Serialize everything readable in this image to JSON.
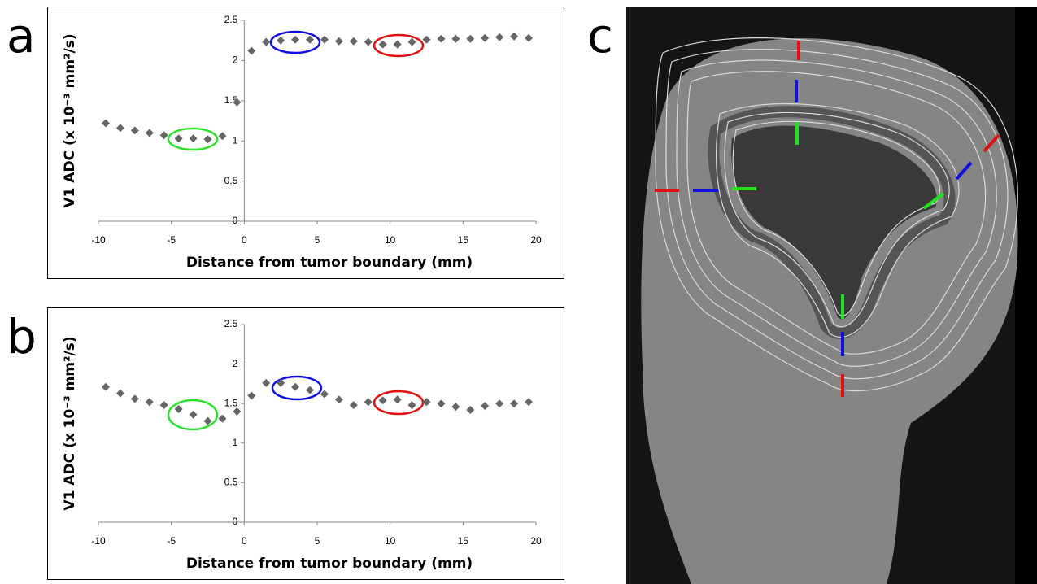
{
  "panel_labels": [
    "a",
    "b",
    "c"
  ],
  "chart_data": [
    {
      "type": "scatter",
      "xlabel": "Distance from tumor boundary (mm)",
      "ylabel": "V1 ADC (x 10⁻³ mm²/s)",
      "color": "#666666",
      "x": [
        -9.5,
        -8.5,
        -7.5,
        -6.5,
        -5.5,
        -4.5,
        -3.5,
        -2.5,
        -1.5,
        -0.5,
        0.5,
        1.5,
        2.5,
        3.5,
        4.5,
        5.5,
        6.5,
        7.5,
        8.5,
        9.5,
        10.5,
        11.5,
        12.5,
        13.5,
        14.5,
        15.5,
        16.5,
        17.5,
        18.5,
        19.5
      ],
      "values": [
        1.22,
        1.16,
        1.13,
        1.1,
        1.07,
        1.03,
        1.03,
        1.02,
        1.06,
        1.48,
        2.12,
        2.23,
        2.25,
        2.26,
        2.26,
        2.26,
        2.24,
        2.24,
        2.23,
        2.2,
        2.2,
        2.23,
        2.26,
        2.27,
        2.27,
        2.27,
        2.28,
        2.29,
        2.3,
        2.28
      ],
      "xlim": [
        -10,
        20
      ],
      "xticks": [
        -10,
        -5,
        0,
        5,
        10,
        15,
        20
      ],
      "ylim": [
        0,
        2.5
      ],
      "yticks": [
        0,
        0.5,
        1,
        1.5,
        2,
        2.5
      ]
    },
    {
      "type": "scatter",
      "xlabel": "Distance from tumor boundary (mm)",
      "ylabel": "V1 ADC (x 10⁻³ mm²/s)",
      "color": "#666666",
      "x": [
        -9.5,
        -8.5,
        -7.5,
        -6.5,
        -5.5,
        -4.5,
        -3.5,
        -2.5,
        -1.5,
        -0.5,
        0.5,
        1.5,
        2.5,
        3.5,
        4.5,
        5.5,
        6.5,
        7.5,
        8.5,
        9.5,
        10.5,
        11.5,
        12.5,
        13.5,
        14.5,
        15.5,
        16.5,
        17.5,
        18.5,
        19.5
      ],
      "values": [
        1.71,
        1.63,
        1.56,
        1.52,
        1.48,
        1.43,
        1.36,
        1.28,
        1.31,
        1.4,
        1.6,
        1.76,
        1.76,
        1.71,
        1.67,
        1.62,
        1.55,
        1.48,
        1.52,
        1.54,
        1.55,
        1.48,
        1.52,
        1.5,
        1.46,
        1.42,
        1.47,
        1.5,
        1.5,
        1.52
      ],
      "xlim": [
        -10,
        20
      ],
      "xticks": [
        -10,
        -5,
        0,
        5,
        10,
        15,
        20
      ],
      "ylim": [
        0,
        2.5
      ],
      "yticks": [
        0,
        0.5,
        1,
        1.5,
        2,
        2.5
      ]
    }
  ]
}
